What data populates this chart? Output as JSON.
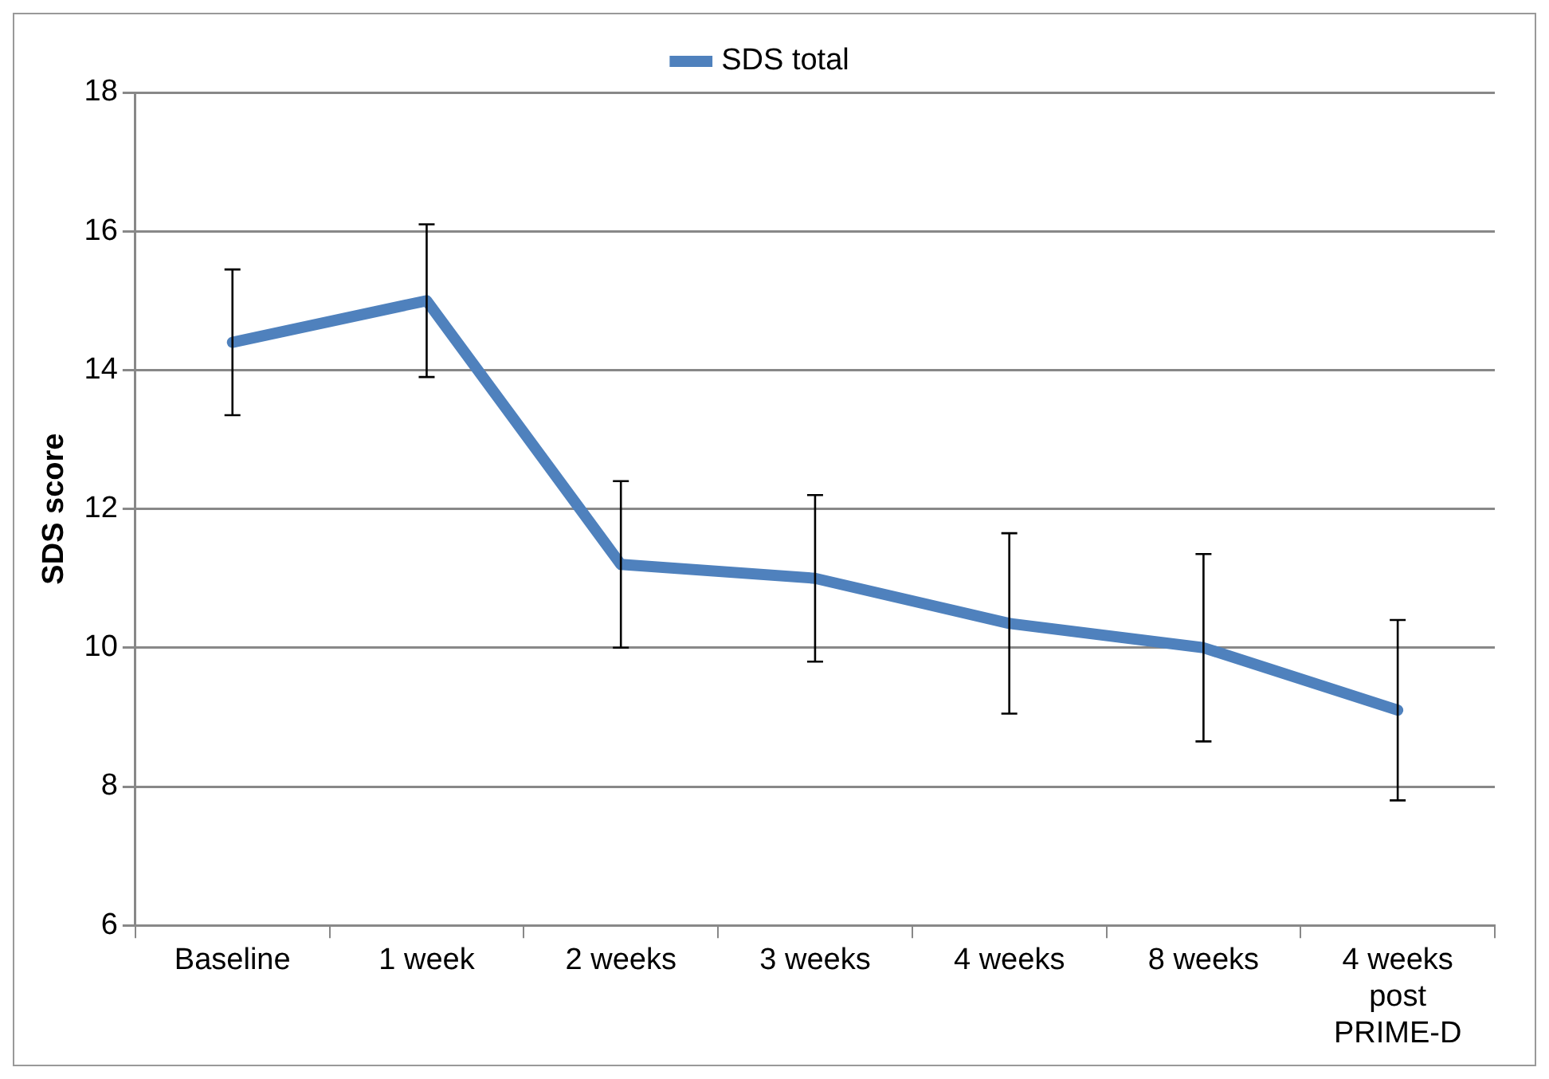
{
  "chart_data": {
    "type": "line",
    "ylabel": "SDS score",
    "categories": [
      "Baseline",
      "1 week",
      "2 weeks",
      "3 weeks",
      "4 weeks",
      "8 weeks",
      "4 weeks post PRIME-D"
    ],
    "series": [
      {
        "name": "SDS total",
        "color": "#4f81bd",
        "values": [
          14.4,
          15.0,
          11.2,
          11.0,
          10.35,
          10.0,
          9.1
        ],
        "errors": [
          1.05,
          1.1,
          1.2,
          1.2,
          1.3,
          1.35,
          1.3
        ]
      }
    ],
    "ylim": [
      6,
      18
    ],
    "yticks": [
      6,
      8,
      10,
      12,
      14,
      16,
      18
    ],
    "grid": "y",
    "legend": "top",
    "marker": "none",
    "line_style": "solid"
  }
}
